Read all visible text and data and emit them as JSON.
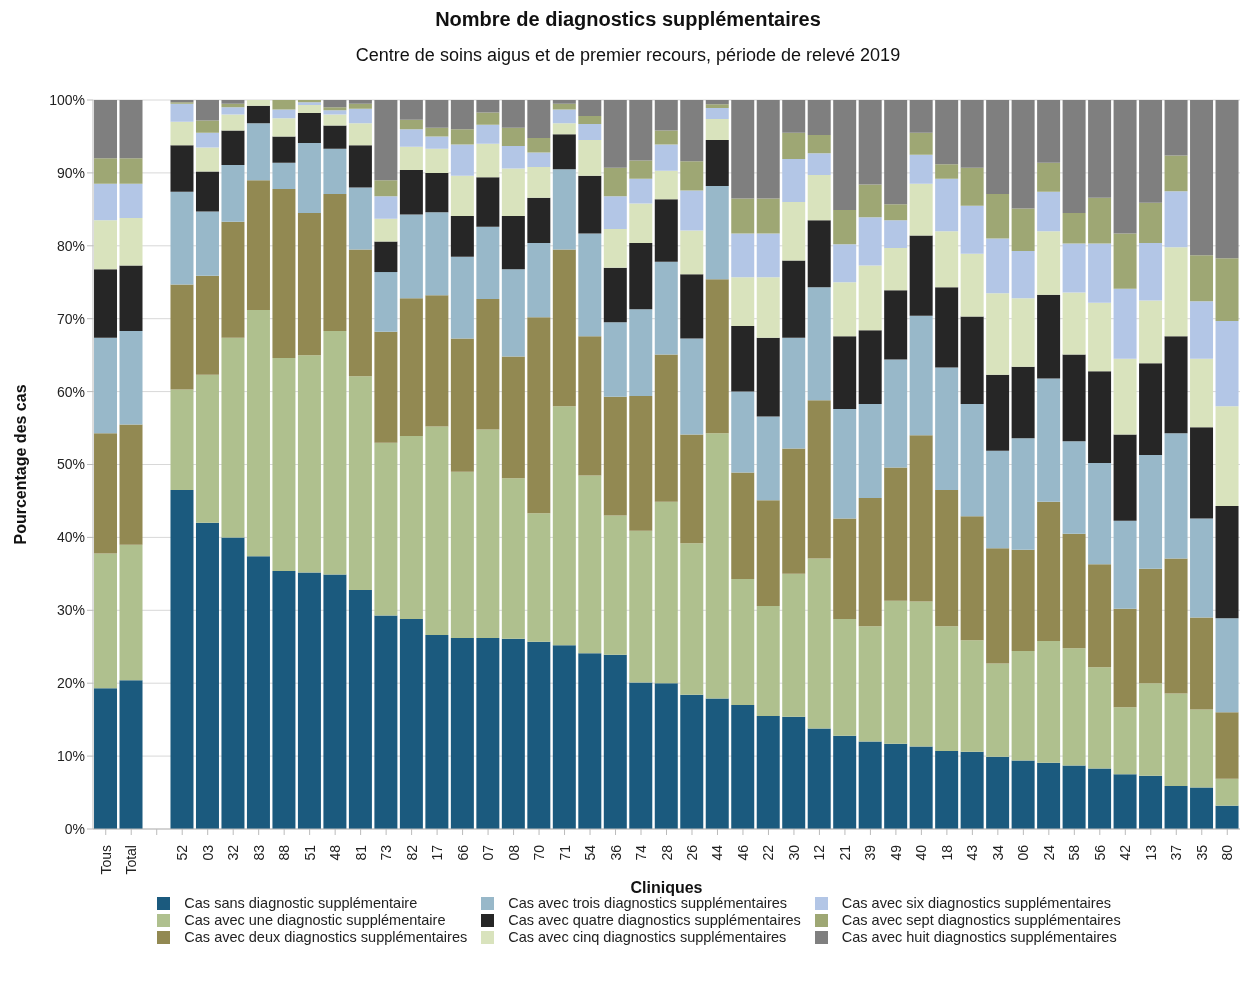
{
  "chart_data": {
    "type": "bar",
    "stacked": true,
    "title": "Nombre de diagnostics supplémentaires",
    "subtitle": "Centre de soins aigus et de premier recours, période de relevé 2019",
    "xlabel": "Cliniques",
    "ylabel": "Pourcentage des cas",
    "categories": [
      "Tous",
      "Total",
      null,
      "52",
      "03",
      "32",
      "83",
      "88",
      "51",
      "48",
      "81",
      "73",
      "82",
      "17",
      "66",
      "07",
      "08",
      "70",
      "71",
      "54",
      "36",
      "74",
      "28",
      "26",
      "44",
      "46",
      "22",
      "30",
      "12",
      "21",
      "39",
      "49",
      "40",
      "18",
      "43",
      "34",
      "06",
      "24",
      "58",
      "56",
      "42",
      "13",
      "37",
      "35",
      "80"
    ],
    "ylim": [
      0,
      100
    ],
    "yticks": [
      {
        "value": 0,
        "label": "0%"
      },
      {
        "value": 10,
        "label": "10%"
      },
      {
        "value": 20,
        "label": "20%"
      },
      {
        "value": 30,
        "label": "30%"
      },
      {
        "value": 40,
        "label": "40%"
      },
      {
        "value": 50,
        "label": "50%"
      },
      {
        "value": 60,
        "label": "60%"
      },
      {
        "value": 70,
        "label": "70%"
      },
      {
        "value": 80,
        "label": "80%"
      },
      {
        "value": 90,
        "label": "90%"
      },
      {
        "value": 100,
        "label": "100%"
      }
    ],
    "grid": "y",
    "legend": "bottom",
    "series": [
      {
        "name": "Cas sans diagnostic supplémentaire",
        "color": "#1b5a7e",
        "values": [
          19.3,
          20.4,
          null,
          46.5,
          42.0,
          40.0,
          37.4,
          35.4,
          35.2,
          34.9,
          32.8,
          29.3,
          28.8,
          26.6,
          26.2,
          26.2,
          26.1,
          25.7,
          25.2,
          24.1,
          23.9,
          20.1,
          20.0,
          18.4,
          17.9,
          17.0,
          15.5,
          15.4,
          13.8,
          12.8,
          12.0,
          11.7,
          11.3,
          10.7,
          10.6,
          9.9,
          9.4,
          9.1,
          8.7,
          8.3,
          7.5,
          7.3,
          5.9,
          5.7,
          3.2
        ]
      },
      {
        "name": "Cas avec une diagnostic supplémentaire",
        "color": "#afc08e",
        "values": [
          18.5,
          18.6,
          null,
          13.8,
          20.3,
          27.4,
          33.8,
          29.2,
          29.8,
          33.4,
          29.3,
          23.7,
          25.1,
          28.6,
          22.8,
          28.6,
          22.0,
          17.6,
          32.8,
          24.4,
          19.1,
          20.8,
          24.9,
          20.8,
          36.4,
          17.3,
          15.1,
          19.6,
          23.3,
          16.0,
          15.8,
          19.6,
          19.9,
          17.1,
          15.3,
          12.8,
          15.0,
          16.7,
          16.1,
          13.9,
          9.2,
          12.7,
          12.7,
          10.7,
          3.7
        ]
      },
      {
        "name": "Cas avec deux diagnostics supplémentaires",
        "color": "#928952",
        "values": [
          16.5,
          16.5,
          null,
          14.4,
          13.6,
          15.9,
          17.8,
          23.2,
          19.5,
          18.8,
          17.4,
          15.2,
          18.9,
          18.0,
          18.3,
          17.9,
          16.7,
          26.9,
          21.5,
          19.1,
          16.3,
          18.5,
          20.2,
          14.9,
          21.1,
          14.6,
          14.5,
          17.2,
          21.7,
          13.8,
          17.6,
          18.3,
          22.8,
          18.7,
          17.0,
          15.8,
          13.9,
          19.1,
          15.7,
          14.1,
          13.5,
          15.7,
          18.5,
          12.6,
          9.1
        ]
      },
      {
        "name": "Cas avec trois diagnostics supplémentaires",
        "color": "#98b8c9",
        "values": [
          13.1,
          12.8,
          null,
          12.7,
          8.8,
          7.8,
          7.8,
          3.6,
          9.6,
          6.2,
          8.5,
          8.2,
          11.5,
          11.4,
          11.2,
          9.9,
          12.0,
          10.2,
          11.0,
          14.1,
          10.2,
          11.9,
          12.7,
          13.2,
          12.8,
          11.1,
          11.5,
          15.2,
          15.5,
          15.0,
          12.9,
          14.8,
          16.4,
          16.8,
          15.4,
          13.4,
          15.3,
          16.9,
          12.7,
          13.9,
          12.1,
          15.6,
          17.2,
          13.6,
          12.9
        ]
      },
      {
        "name": "Cas avec quatre diagnostics supplémentaires",
        "color": "#262626",
        "values": [
          9.4,
          9.0,
          null,
          6.4,
          5.5,
          4.7,
          2.4,
          3.6,
          4.1,
          3.2,
          5.8,
          4.2,
          6.1,
          5.4,
          5.6,
          6.8,
          7.3,
          6.2,
          4.8,
          7.9,
          7.5,
          9.1,
          8.6,
          8.8,
          6.3,
          9.0,
          10.8,
          10.6,
          9.2,
          10.0,
          10.1,
          9.5,
          11.0,
          11.0,
          12.0,
          10.4,
          9.8,
          11.5,
          11.9,
          12.6,
          11.8,
          12.6,
          13.3,
          12.5,
          15.4
        ]
      },
      {
        "name": "Cas avec cinq diagnostics supplémentaires",
        "color": "#d9e3bd",
        "values": [
          6.7,
          6.5,
          null,
          3.2,
          3.3,
          2.2,
          0.8,
          2.5,
          1.1,
          1.5,
          3.0,
          3.1,
          3.2,
          3.3,
          5.5,
          4.6,
          6.5,
          4.2,
          1.5,
          4.9,
          5.3,
          5.4,
          3.9,
          6.0,
          2.9,
          6.7,
          8.3,
          8.0,
          6.2,
          7.4,
          8.9,
          5.8,
          7.1,
          7.7,
          8.6,
          11.2,
          9.4,
          8.7,
          8.5,
          9.4,
          10.4,
          8.6,
          12.2,
          9.4,
          13.7
        ]
      },
      {
        "name": "Cas avec six diagnostics supplémentaires",
        "color": "#b3c6e6",
        "values": [
          5.0,
          4.7,
          null,
          2.5,
          2.0,
          1.0,
          0,
          1.2,
          0.4,
          0.6,
          2.0,
          3.1,
          2.4,
          1.7,
          4.3,
          2.6,
          3.1,
          2.0,
          1.9,
          2.2,
          4.5,
          3.4,
          3.6,
          5.5,
          1.5,
          6.0,
          6.0,
          5.9,
          3.0,
          5.2,
          6.6,
          3.8,
          4.0,
          7.2,
          6.6,
          7.5,
          6.5,
          5.4,
          6.7,
          8.1,
          9.6,
          7.9,
          7.7,
          7.9,
          11.7
        ]
      },
      {
        "name": "Cas avec sept diagnostics supplémentaires",
        "color": "#9ea774",
        "values": [
          3.5,
          3.5,
          null,
          0.2,
          1.7,
          0.5,
          0,
          1.3,
          0.3,
          0.4,
          0.7,
          2.2,
          1.3,
          1.2,
          2.1,
          1.7,
          2.5,
          2.0,
          0.8,
          1.1,
          3.9,
          2.5,
          1.9,
          4.0,
          0.5,
          4.8,
          4.8,
          3.6,
          2.5,
          4.7,
          4.5,
          2.2,
          3.0,
          2.0,
          5.2,
          6.1,
          5.8,
          4.0,
          4.2,
          6.3,
          7.6,
          5.5,
          4.9,
          6.3,
          8.6
        ]
      },
      {
        "name": "Cas avec huit diagnostics supplémentaires",
        "color": "#7f7f7f",
        "values": [
          8.0,
          8.0,
          null,
          0.3,
          2.8,
          0.5,
          0,
          0,
          0,
          1.0,
          0.5,
          11.0,
          2.7,
          3.8,
          4.0,
          1.7,
          3.8,
          5.2,
          0.5,
          2.2,
          9.3,
          8.3,
          4.2,
          8.4,
          0.6,
          13.5,
          13.5,
          4.5,
          4.8,
          15.1,
          11.6,
          14.3,
          4.5,
          8.8,
          9.3,
          12.9,
          14.9,
          8.6,
          15.5,
          13.4,
          18.3,
          14.1,
          7.6,
          21.3,
          21.7
        ]
      }
    ]
  }
}
